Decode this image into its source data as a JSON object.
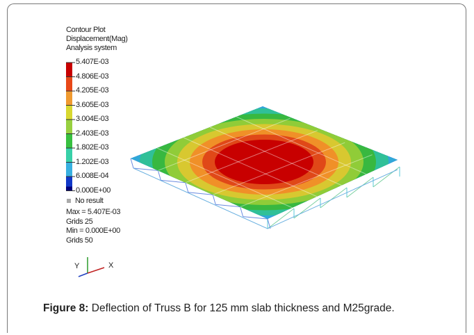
{
  "figure": {
    "header": [
      "Contour Plot",
      "Displacement(Mag)",
      "Analysis system"
    ],
    "legend_labels": [
      "5.407E-03",
      "4.806E-03",
      "4.205E-03",
      "3.605E-03",
      "3.004E-03",
      "2.403E-03",
      "1.802E-03",
      "1.202E-03",
      "6.008E-04",
      "0.000E+00"
    ],
    "no_result": "No result",
    "stats": [
      "Max = 5.407E-03",
      "Grids 25",
      "Min = 0.000E+00",
      "Grids 50"
    ],
    "axes": {
      "y": "Y",
      "x": "X"
    }
  },
  "caption": {
    "label": "Figure 8:",
    "text": "Deflection of Truss B for 125 mm slab thickness and M25grade."
  }
}
